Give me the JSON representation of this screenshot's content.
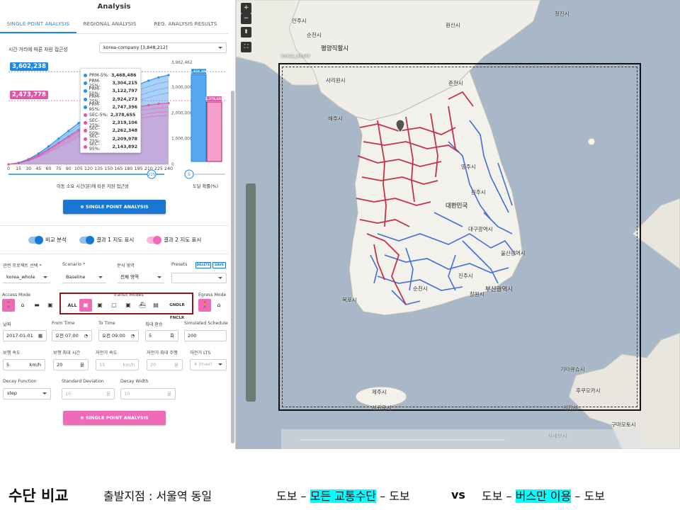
{
  "panel": {
    "title": "Analysis",
    "tabs": [
      "SINGLE POINT ANALYSIS",
      "REGIONAL ANALYSIS",
      "REG. ANALYSIS RESULTS"
    ],
    "chart_header": "시간 거리에 따른 자원 접근성",
    "dataset_select": "korea-company [3,848,212]",
    "chart_xlabel": "이동 소요 시간(분)에 따른 자원 접근성",
    "chart2_xlabel": "도달 확률(%)",
    "badge_blue": "3,602,238",
    "badge_pink": "2,473,778",
    "y_max_label": "3,962,462",
    "slider_value": "215",
    "prob_slider_value": "5",
    "bar_blue_label": "3,468,486",
    "bar_pink_label": "2,378,655",
    "single_point_button": "SINGLE POINT ANALYSIS",
    "toggles": [
      "비교 분석",
      "결과 1 지도 표시",
      "결과 2 지도 표시"
    ],
    "project_label": "관련 프로젝트 선택 *",
    "project_value": "korea_whole",
    "scenario_label": "Scenario *",
    "scenario_value": "Baseline",
    "area_label": "분석 영역",
    "area_value": "전체 영역",
    "presets_label": "Presets",
    "delete_label": "DELETE",
    "save_label": "SAVE",
    "access_mode_label": "Access Mode",
    "transit_modes_label": "Transit Modes",
    "egress_mode_label": "Egress Mode",
    "transit_all": "ALL",
    "transit_extra": "GNDLR FNCLR",
    "date_label": "날짜",
    "date_value": "2017-01-01",
    "from_label": "From Time",
    "from_value": "오전 07:00",
    "to_label": "To Time",
    "to_value": "오전 09:00",
    "max_transfer_label": "최대 환승",
    "max_transfer_value": "5",
    "max_transfer_unit": "회",
    "sim_label": "Simulated Schedule",
    "sim_value": "200",
    "walk_speed_label": "보행 속도",
    "walk_speed_value": "5",
    "walk_speed_unit": "km/h",
    "walk_max_label": "보행 최대 시간",
    "walk_max_value": "20",
    "walk_max_unit": "분",
    "bike_speed_label": "자전거 속도",
    "bike_speed_value": "15",
    "bike_speed_unit": "km/h",
    "bike_max_label": "자전거 최대 주행",
    "bike_max_value": "20",
    "bike_max_unit": "분",
    "bike_lts_label": "자전거 LTS",
    "bike_lts_value": "4 (max)",
    "decay_label": "Decay Function",
    "decay_value": "step",
    "std_label": "Standard Deviation",
    "std_value": "10",
    "std_unit": "분",
    "width_label": "Decay Width",
    "width_value": "10",
    "width_unit": "분",
    "single_point_button2": "SINGLE POINT ANALYSIS"
  },
  "tooltip": [
    {
      "label": "PRM-5%:",
      "value": "3,468,486",
      "color": "#2f8fe8"
    },
    {
      "label": "PRM-25%:",
      "value": "3,304,215",
      "color": "#2f8fe8"
    },
    {
      "label": "PRM-50%:",
      "value": "3,122,797",
      "color": "#2f8fe8"
    },
    {
      "label": "PRM-75%:",
      "value": "2,924,273",
      "color": "#2f8fe8"
    },
    {
      "label": "PRM-95%:",
      "value": "2,747,396",
      "color": "#2f8fe8"
    },
    {
      "label": "SEC-5%:",
      "value": "2,378,655",
      "color": "#e055a6"
    },
    {
      "label": "SEC-25%:",
      "value": "2,319,106",
      "color": "#e055a6"
    },
    {
      "label": "SEC-50%:",
      "value": "2,262,348",
      "color": "#e055a6"
    },
    {
      "label": "SEC-75%:",
      "value": "2,209,978",
      "color": "#e055a6"
    },
    {
      "label": "SEC-95%:",
      "value": "2,143,892",
      "color": "#e055a6"
    }
  ],
  "chart_data": {
    "type": "area",
    "x": [
      0,
      15,
      30,
      45,
      60,
      75,
      90,
      105,
      120,
      135,
      150,
      165,
      180,
      195,
      210,
      225,
      240
    ],
    "series": [
      {
        "name": "PRM",
        "values": [
          0,
          60000,
          200000,
          420000,
          700000,
          1000000,
          1300000,
          1600000,
          1900000,
          2150000,
          2400000,
          2650000,
          2900000,
          3100000,
          3250000,
          3380000,
          3468486
        ]
      },
      {
        "name": "SEC",
        "values": [
          0,
          50000,
          170000,
          350000,
          580000,
          830000,
          1080000,
          1320000,
          1540000,
          1720000,
          1880000,
          2020000,
          2140000,
          2230000,
          2300000,
          2350000,
          2378655
        ]
      }
    ],
    "ytick_labels": [
      "3,962,462",
      "3,000,000",
      "2,000,000",
      "1,000,000",
      "0"
    ],
    "xtick_labels": [
      "0",
      "15",
      "30",
      "45",
      "60",
      "75",
      "90",
      "105",
      "120",
      "135",
      "150",
      "165",
      "180",
      "195",
      "210",
      "225",
      "240"
    ],
    "ylim": [
      0,
      3962462
    ],
    "colors": {
      "prm": "#2f8fe8",
      "sec": "#e055a6"
    }
  },
  "map": {
    "zoom_in": "+",
    "zoom_out": "−",
    "layer_label": "korea_whole",
    "labels": [
      {
        "text": "평양직할시",
        "x": 120,
        "y": 62,
        "big": true
      },
      {
        "text": "사리원시",
        "x": 127,
        "y": 108
      },
      {
        "text": "해주시",
        "x": 130,
        "y": 162
      },
      {
        "text": "대한민국",
        "x": 296,
        "y": 284,
        "big": true
      },
      {
        "text": "부산광역시",
        "x": 352,
        "y": 402,
        "big": true
      },
      {
        "text": "안주시",
        "x": 79,
        "y": 24
      },
      {
        "text": "순천시",
        "x": 100,
        "y": 44
      },
      {
        "text": "원산시",
        "x": 296,
        "y": 30
      },
      {
        "text": "청진시",
        "x": 450,
        "y": 14
      },
      {
        "text": "춘천시",
        "x": 300,
        "y": 112
      },
      {
        "text": "원주시",
        "x": 332,
        "y": 266
      },
      {
        "text": "영주시",
        "x": 318,
        "y": 230
      },
      {
        "text": "대구광역시",
        "x": 328,
        "y": 318
      },
      {
        "text": "진주시",
        "x": 314,
        "y": 384
      },
      {
        "text": "울산광역시",
        "x": 374,
        "y": 352
      },
      {
        "text": "창원시",
        "x": 330,
        "y": 410
      },
      {
        "text": "목포시",
        "x": 150,
        "y": 418
      },
      {
        "text": "순천시",
        "x": 250,
        "y": 402
      },
      {
        "text": "제주시",
        "x": 192,
        "y": 548
      },
      {
        "text": "서귀포시",
        "x": 192,
        "y": 570
      },
      {
        "text": "기타큐슈시",
        "x": 458,
        "y": 516
      },
      {
        "text": "후쿠오카시",
        "x": 480,
        "y": 546
      },
      {
        "text": "사가시",
        "x": 462,
        "y": 570
      },
      {
        "text": "구마모토시",
        "x": 530,
        "y": 594
      },
      {
        "text": "사세보시",
        "x": 440,
        "y": 610
      }
    ]
  },
  "caption": {
    "title": "수단 비교",
    "origin": "출발지점 : 서울역 동일",
    "left_prefix": "도보 – ",
    "left_highlight": "모든 교통수단",
    "left_suffix": " – 도보",
    "vs": "vs",
    "right_prefix": "도보 – ",
    "right_highlight": "버스만 이용",
    "right_suffix": " – 도보",
    "highlight_color": "#00ffff"
  }
}
